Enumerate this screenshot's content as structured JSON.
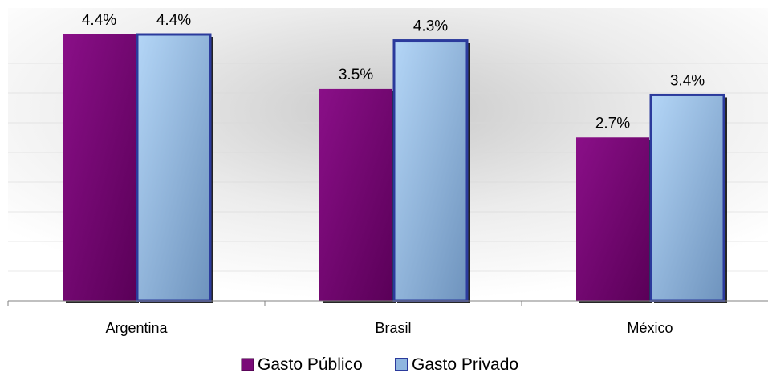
{
  "chart_data": {
    "type": "bar",
    "categories": [
      "Argentina",
      "Brasil",
      "México"
    ],
    "series": [
      {
        "name": "Gasto Público",
        "values": [
          4.4,
          3.5,
          2.7
        ],
        "labels": [
          "4.4%",
          "3.5%",
          "2.7%"
        ],
        "color": "#7a0a78"
      },
      {
        "name": "Gasto Privado",
        "values": [
          4.4,
          4.3,
          3.4
        ],
        "labels": [
          "4.4%",
          "4.3%",
          "3.4%"
        ],
        "color": "#8fb6e0"
      }
    ],
    "value_format": "percent",
    "ylim": [
      0,
      4.4
    ],
    "grid": true,
    "legend_position": "bottom",
    "colors": {
      "series1_fill": "#7a0a78",
      "series2_fill": "#8fb6e0",
      "series2_border": "#2b3a9c",
      "gridline": "#d9d9d9"
    }
  }
}
